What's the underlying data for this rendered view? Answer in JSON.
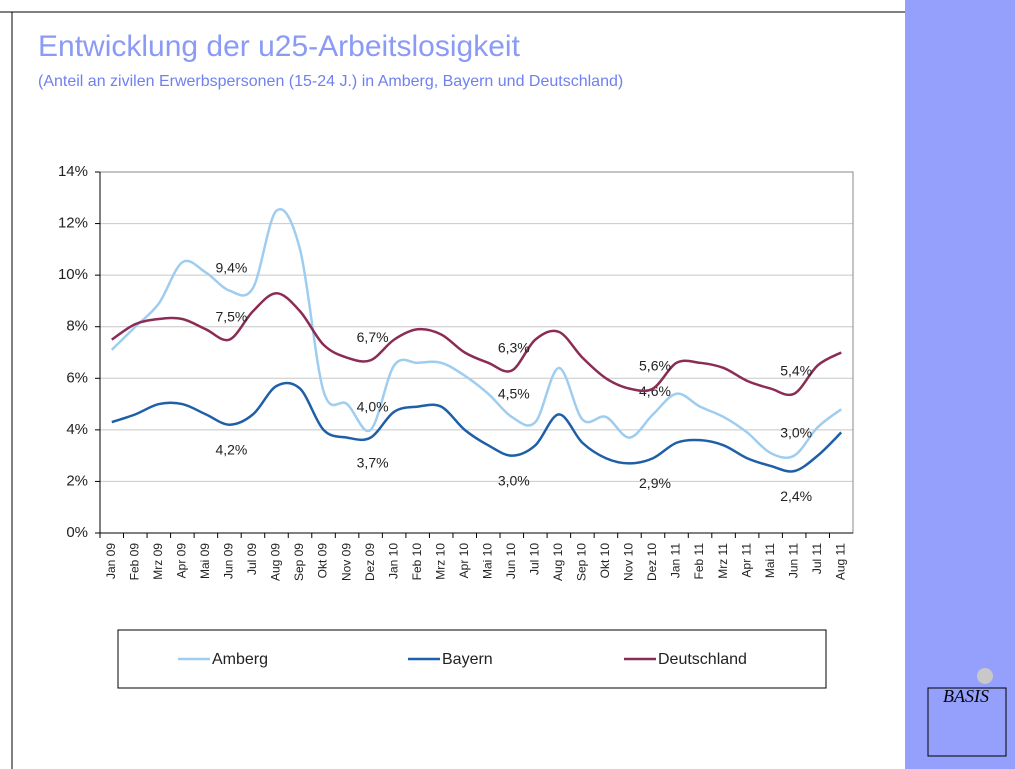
{
  "chart_data": {
    "type": "line",
    "title": "Entwicklung der u25-Arbeitslosigkeit",
    "subtitle": "(Anteil an zivilen Erwerbspersonen (15-24 J.) in Amberg, Bayern und Deutschland)",
    "logo": "BASIS",
    "categories": [
      "Jan 09",
      "Feb 09",
      "Mrz 09",
      "Apr 09",
      "Mai 09",
      "Jun 09",
      "Jul 09",
      "Aug 09",
      "Sep 09",
      "Okt 09",
      "Nov 09",
      "Dez 09",
      "Jan 10",
      "Feb 10",
      "Mrz 10",
      "Apr 10",
      "Mai 10",
      "Jun 10",
      "Jul 10",
      "Aug 10",
      "Sep 10",
      "Okt 10",
      "Nov 10",
      "Dez 10",
      "Jan 11",
      "Feb 11",
      "Mrz 11",
      "Apr 11",
      "Mai 11",
      "Jun 11",
      "Jul 11",
      "Aug 11"
    ],
    "series": [
      {
        "name": "Amberg",
        "color": "#9fcdf0",
        "values": [
          7.1,
          8.0,
          8.9,
          10.5,
          10.1,
          9.4,
          9.5,
          12.5,
          11.0,
          5.5,
          5.0,
          4.0,
          6.5,
          6.6,
          6.6,
          6.1,
          5.4,
          4.5,
          4.3,
          6.4,
          4.4,
          4.5,
          3.7,
          4.6,
          5.4,
          4.9,
          4.5,
          3.9,
          3.1,
          3.0,
          4.1,
          4.8
        ],
        "value_labels": [
          null,
          null,
          null,
          null,
          null,
          "9,4%",
          null,
          null,
          null,
          null,
          null,
          "4,0%",
          null,
          null,
          null,
          null,
          null,
          "4,5%",
          null,
          null,
          null,
          null,
          null,
          "4,6%",
          null,
          null,
          null,
          null,
          null,
          "3,0%",
          null,
          null
        ]
      },
      {
        "name": "Bayern",
        "color": "#1f5fa8",
        "values": [
          4.3,
          4.6,
          5.0,
          5.0,
          4.6,
          4.2,
          4.6,
          5.7,
          5.6,
          4.0,
          3.7,
          3.7,
          4.7,
          4.9,
          4.9,
          4.0,
          3.4,
          3.0,
          3.4,
          4.6,
          3.5,
          2.9,
          2.7,
          2.9,
          3.5,
          3.6,
          3.4,
          2.9,
          2.6,
          2.4,
          3.0,
          3.9
        ],
        "value_labels": [
          null,
          null,
          null,
          null,
          null,
          "4,2%",
          null,
          null,
          null,
          null,
          null,
          "3,7%",
          null,
          null,
          null,
          null,
          null,
          "3,0%",
          null,
          null,
          null,
          null,
          null,
          "2,9%",
          null,
          null,
          null,
          null,
          null,
          "2,4%",
          null,
          null
        ]
      },
      {
        "name": "Deutschland",
        "color": "#8b2c55",
        "values": [
          7.5,
          8.1,
          8.3,
          8.3,
          7.9,
          7.5,
          8.6,
          9.3,
          8.6,
          7.3,
          6.8,
          6.7,
          7.5,
          7.9,
          7.7,
          7.0,
          6.6,
          6.3,
          7.5,
          7.8,
          6.8,
          6.0,
          5.6,
          5.6,
          6.6,
          6.6,
          6.4,
          5.9,
          5.6,
          5.4,
          6.5,
          7.0
        ],
        "value_labels": [
          null,
          null,
          null,
          null,
          null,
          "7,5%",
          null,
          null,
          null,
          null,
          null,
          "6,7%",
          null,
          null,
          null,
          null,
          null,
          "6,3%",
          null,
          null,
          null,
          null,
          null,
          "5,6%",
          null,
          null,
          null,
          null,
          null,
          "5,4%",
          null,
          null
        ]
      }
    ],
    "ylim": [
      0,
      14
    ],
    "yticks": [
      {
        "value": 0,
        "label": "0%"
      },
      {
        "value": 2,
        "label": "2%"
      },
      {
        "value": 4,
        "label": "4%"
      },
      {
        "value": 6,
        "label": "6%"
      },
      {
        "value": 8,
        "label": "8%"
      },
      {
        "value": 10,
        "label": "10%"
      },
      {
        "value": 12,
        "label": "12%"
      },
      {
        "value": 14,
        "label": "14%"
      }
    ],
    "grid": true,
    "legend": "bottom"
  }
}
